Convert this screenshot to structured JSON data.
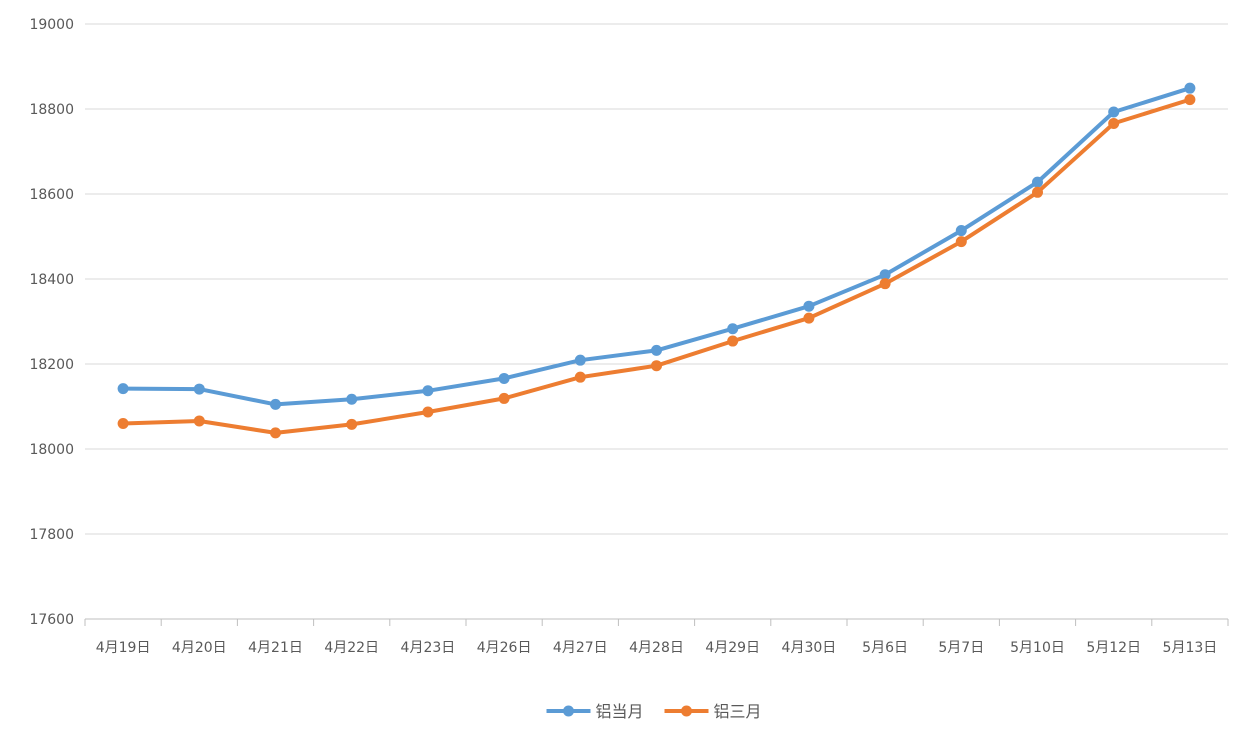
{
  "chart_data": {
    "type": "line",
    "title": "",
    "xlabel": "",
    "ylabel": "",
    "ylim": [
      17600,
      19000
    ],
    "yticks": [
      17600,
      17800,
      18000,
      18200,
      18400,
      18600,
      18800,
      19000
    ],
    "ytick_labels": [
      "17600",
      "17800",
      "18000",
      "18200",
      "18400",
      "18600",
      "18800",
      "19000"
    ],
    "grid": true,
    "legend_position": "bottom",
    "categories": [
      "4月19日",
      "4月20日",
      "4月21日",
      "4月22日",
      "4月23日",
      "4月26日",
      "4月27日",
      "4月28日",
      "4月29日",
      "4月30日",
      "5月6日",
      "5月7日",
      "5月10日",
      "5月12日",
      "5月13日"
    ],
    "series": [
      {
        "name": "铝当月",
        "color": "#5B9BD5",
        "values": [
          18142,
          18141,
          18105,
          18117,
          18137,
          18166,
          18209,
          18232,
          18283,
          18336,
          18410,
          18514,
          18628,
          18793,
          18849
        ]
      },
      {
        "name": "铝三月",
        "color": "#ED7D31",
        "values": [
          18060,
          18066,
          18038,
          18058,
          18087,
          18119,
          18169,
          18196,
          18254,
          18308,
          18389,
          18488,
          18604,
          18766,
          18822
        ]
      }
    ]
  }
}
